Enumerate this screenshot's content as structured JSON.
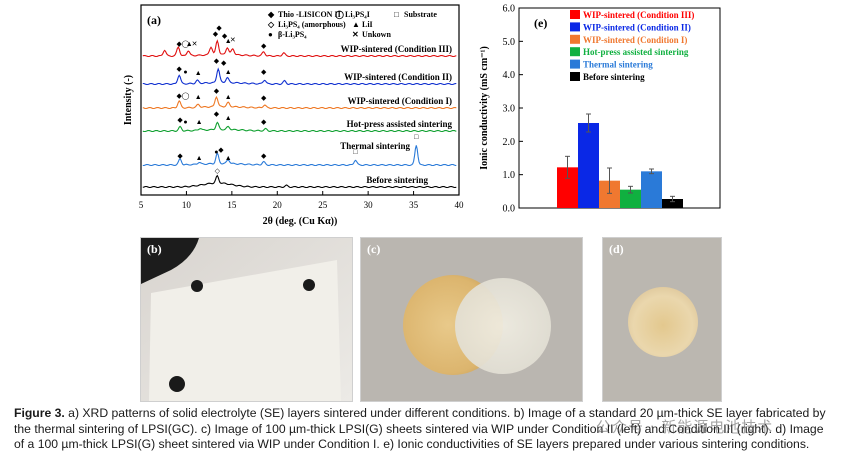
{
  "panel_a": {
    "label": "(a)",
    "x_axis_label": "2θ (deg. (Cu Kα))",
    "y_axis_label": "Intensity (-)",
    "x_ticks": [
      "5",
      "10",
      "15",
      "20",
      "25",
      "30",
      "35",
      "40"
    ],
    "legend": [
      {
        "symbol": "◆",
        "text": "Thio -LISICON II"
      },
      {
        "symbol": "◯",
        "text": "Li₃PS₄I"
      },
      {
        "symbol": "◇",
        "text": "Li₃PS₄ (amorphous)"
      },
      {
        "symbol": "▲",
        "text": "LiI"
      },
      {
        "symbol": "●",
        "text": "β-Li₃PS₄"
      },
      {
        "symbol": "✕",
        "text": "Unkown"
      },
      {
        "symbol": "□",
        "text": "Substrate"
      }
    ],
    "traces": [
      {
        "label": "WIP-sintered (Condition III)",
        "color": "#e01010"
      },
      {
        "label": "WIP-sintered (Condition II)",
        "color": "#1030d0"
      },
      {
        "label": "WIP-sintered (Condition I)",
        "color": "#ee7722"
      },
      {
        "label": "Hot-press assisted sintering",
        "color": "#10a030"
      },
      {
        "label": "Thermal sintering",
        "color": "#2a7ad8"
      },
      {
        "label": "Before sintering",
        "color": "#000000"
      }
    ]
  },
  "chart_data": {
    "type": "bar",
    "panel_label": "(e)",
    "title": "",
    "xlabel": "",
    "ylabel": "Ionic conductivity (mS cm⁻¹)",
    "ylim": [
      0.0,
      6.0
    ],
    "y_ticks": [
      "0.0",
      "1.0",
      "2.0",
      "3.0",
      "4.0",
      "5.0",
      "6.0"
    ],
    "categories": [
      "WIP-sintered (Condition III)",
      "WIP-sintered (Condition II)",
      "WIP-sintered (Condition I)",
      "Hot-press assisted sintering",
      "Thermal sintering",
      "Before sintering"
    ],
    "values": [
      1.22,
      2.55,
      0.82,
      0.55,
      1.1,
      0.27
    ],
    "errors": [
      0.33,
      0.27,
      0.38,
      0.1,
      0.07,
      0.08
    ],
    "colors": [
      "#ff0000",
      "#0a28e6",
      "#f07830",
      "#10b040",
      "#2a7ad8",
      "#000000"
    ]
  },
  "photos": {
    "b": {
      "label": "(b)"
    },
    "c": {
      "label": "(c)"
    },
    "d": {
      "label": "(d)"
    }
  },
  "caption": {
    "heading": "Figure 3.",
    "text": " a) XRD patterns of solid electrolyte (SE) layers sintered under different conditions. b) Image of a standard 20 µm-thick SE layer fabricated by the thermal sintering of LPSI(GC). c) Image of 100 µm-thick LPSI(G) sheets sintered via WIP under Condition II (left) and Condition III (right). d) Image of a 100 µm-thick LPSI(G) sheet sintered via WIP under Condition I. e) Ionic conductivities of SE layers prepared under various sintering conditions."
  },
  "watermark": "公众号 · 新能源电池技术"
}
